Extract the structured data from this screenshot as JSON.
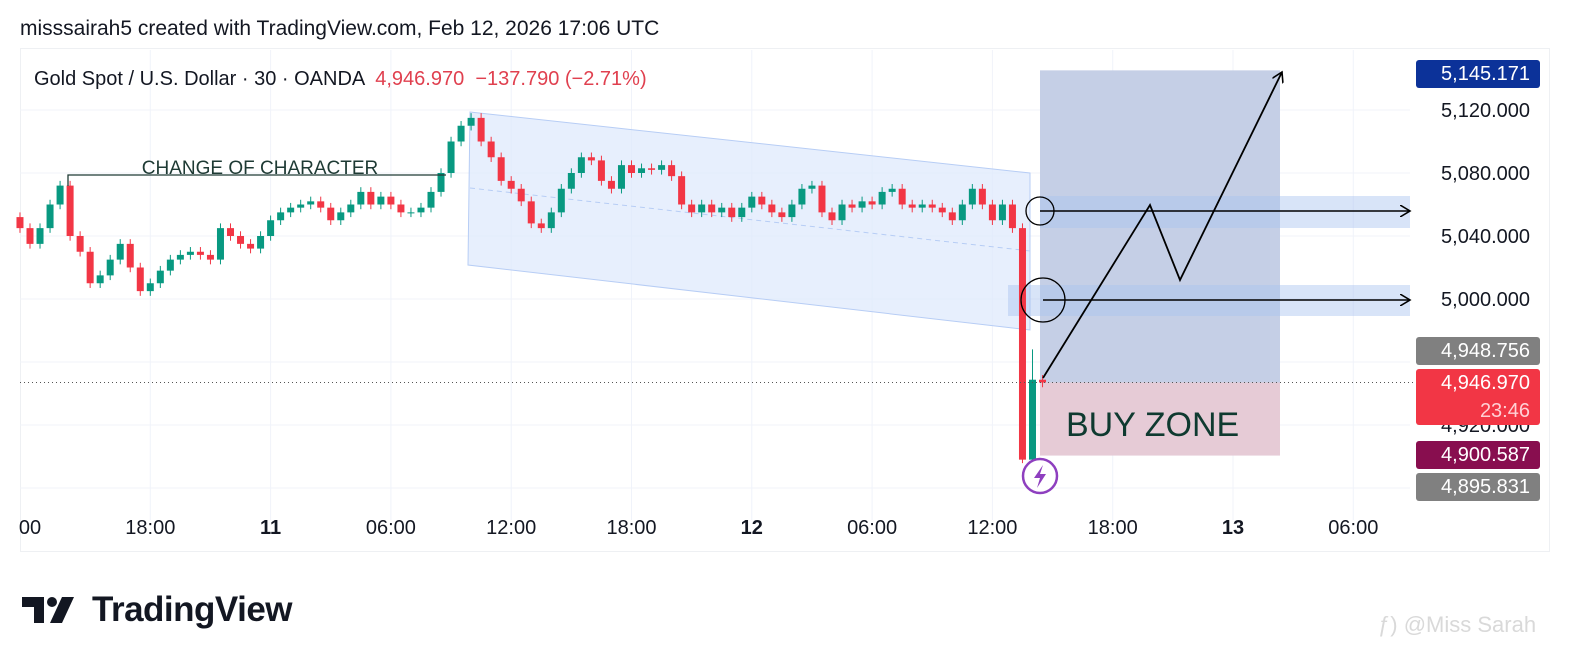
{
  "credit": "misssairah5 created with TradingView.com, Feb 12, 2026 17:06 UTC",
  "legend": {
    "symbol": "Gold Spot / U.S. Dollar · 30 · OANDA",
    "price": "4,946.970",
    "change": "−137.790 (−2.71%)"
  },
  "colors": {
    "up": "#089981",
    "down": "#f23645",
    "target_label": "#0c3299",
    "price_label": "#f23645",
    "marker_label": "#880e4f",
    "gray_label": "#808080",
    "profit_zone": "#c5cfe6",
    "stop_zone": "#e6cbd6",
    "channel": "#dfeafc"
  },
  "chart_data": {
    "type": "candlestick",
    "symbol": "XAUUSD",
    "interval": "30",
    "y_ticks": [
      "5,120.000",
      "5,080.000",
      "5,040.000",
      "5,000.000",
      "4,920.000"
    ],
    "y_tick_values": [
      5120,
      5080,
      5040,
      5000,
      4920
    ],
    "x_ticks": [
      {
        "label": "00",
        "bold": false,
        "hour": 12
      },
      {
        "label": "18:00",
        "bold": false,
        "hour": 18
      },
      {
        "label": "11",
        "bold": true,
        "hour": 24
      },
      {
        "label": "06:00",
        "bold": false,
        "hour": 30
      },
      {
        "label": "12:00",
        "bold": false,
        "hour": 36
      },
      {
        "label": "18:00",
        "bold": false,
        "hour": 42
      },
      {
        "label": "12",
        "bold": true,
        "hour": 48
      },
      {
        "label": "06:00",
        "bold": false,
        "hour": 54
      },
      {
        "label": "12:00",
        "bold": false,
        "hour": 60
      },
      {
        "label": "18:00",
        "bold": false,
        "hour": 66
      },
      {
        "label": "13",
        "bold": true,
        "hour": 72
      },
      {
        "label": "06:00",
        "bold": false,
        "hour": 78
      }
    ],
    "first_bar_hour": 11.5,
    "closes": [
      5045,
      5035,
      5045,
      5060,
      5072,
      5040,
      5030,
      5010,
      5015,
      5025,
      5035,
      5020,
      5005,
      5010,
      5018,
      5025,
      5028,
      5030,
      5028,
      5025,
      5045,
      5040,
      5035,
      5032,
      5040,
      5050,
      5055,
      5058,
      5060,
      5062,
      5058,
      5050,
      5055,
      5060,
      5068,
      5060,
      5065,
      5060,
      5055,
      5055,
      5058,
      5068,
      5080,
      5100,
      5110,
      5115,
      5100,
      5090,
      5075,
      5070,
      5062,
      5048,
      5045,
      5055,
      5070,
      5080,
      5090,
      5088,
      5075,
      5070,
      5085,
      5080,
      5083,
      5082,
      5085,
      5078,
      5060,
      5055,
      5060,
      5055,
      5058,
      5052,
      5058,
      5065,
      5060,
      5055,
      5052,
      5060,
      5070,
      5072,
      5055,
      5050,
      5060,
      5058,
      5062,
      5060,
      5068,
      5070,
      5060,
      5058,
      5060,
      5058,
      5055,
      5050,
      5060,
      5070,
      5060,
      5050,
      5060,
      5045,
      4898,
      4948.756,
      4946.97
    ],
    "first_open": 5052,
    "last_price": 4946.97,
    "price_labels": [
      {
        "text": "5,145.171",
        "value": 5145.171,
        "color": "target_label"
      },
      {
        "text": "4,948.756",
        "value": 4948.756,
        "color": "gray_label"
      },
      {
        "text": "4,946.970",
        "sub": "23:46",
        "value": 4946.97,
        "color": "price_label"
      },
      {
        "text": "4,900.587",
        "value": 4900.587,
        "color": "marker_label"
      },
      {
        "text": "4,895.831",
        "value": 4895.831,
        "color": "gray_label"
      }
    ],
    "annotations": {
      "choch": "CHANGE OF CHARACTER",
      "buy_zone": "BUY ZONE",
      "long_position": {
        "entry": 4946.97,
        "target": 5145.171,
        "stop": 4900.587
      },
      "levels": [
        5058,
        5000
      ]
    }
  },
  "footer": {
    "brand": "TradingView",
    "watermark": "@Miss Sarah"
  }
}
